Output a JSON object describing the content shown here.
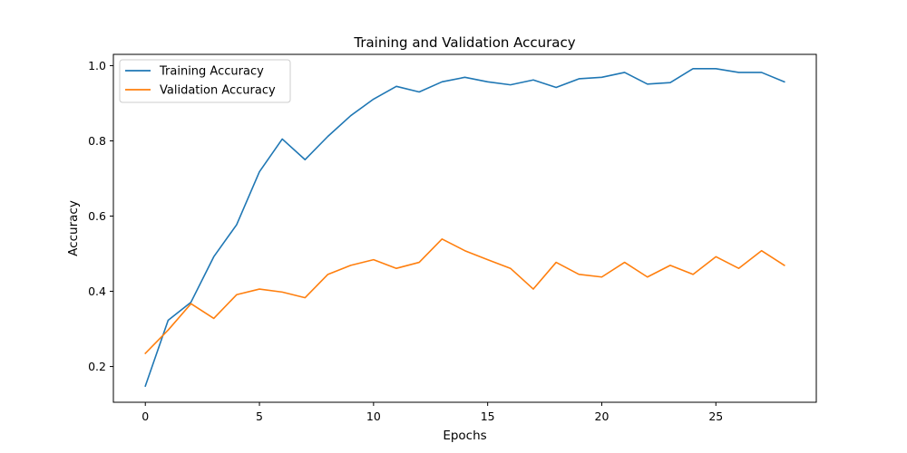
{
  "chart_data": {
    "type": "line",
    "title": "Training and Validation Accuracy",
    "xlabel": "Epochs",
    "ylabel": "Accuracy",
    "xlim": [
      -1.4,
      29.4
    ],
    "ylim": [
      0.105,
      1.03
    ],
    "xticks": [
      0,
      5,
      10,
      15,
      20,
      25
    ],
    "yticks": [
      0.2,
      0.4,
      0.6,
      0.8,
      1.0
    ],
    "ytick_labels": [
      "0.2",
      "0.4",
      "0.6",
      "0.8",
      "1.0"
    ],
    "grid": false,
    "legend_position": "top-left",
    "x": [
      0,
      1,
      2,
      3,
      4,
      5,
      6,
      7,
      8,
      9,
      10,
      11,
      12,
      13,
      14,
      15,
      16,
      17,
      18,
      19,
      20,
      21,
      22,
      23,
      24,
      25,
      26,
      27,
      28
    ],
    "series": [
      {
        "name": "Training Accuracy",
        "color": "#1f77b4",
        "values": [
          0.148,
          0.323,
          0.371,
          0.492,
          0.577,
          0.718,
          0.805,
          0.75,
          0.812,
          0.867,
          0.911,
          0.945,
          0.93,
          0.957,
          0.969,
          0.957,
          0.949,
          0.962,
          0.942,
          0.965,
          0.969,
          0.982,
          0.951,
          0.955,
          0.992,
          0.992,
          0.982,
          0.982,
          0.957
        ]
      },
      {
        "name": "Validation Accuracy",
        "color": "#ff7f0e",
        "values": [
          0.235,
          0.297,
          0.367,
          0.328,
          0.391,
          0.406,
          0.398,
          0.383,
          0.445,
          0.469,
          0.484,
          0.461,
          0.477,
          0.539,
          0.508,
          0.484,
          0.461,
          0.406,
          0.477,
          0.445,
          0.438,
          0.477,
          0.438,
          0.469,
          0.445,
          0.492,
          0.461,
          0.508,
          0.469
        ]
      }
    ]
  }
}
